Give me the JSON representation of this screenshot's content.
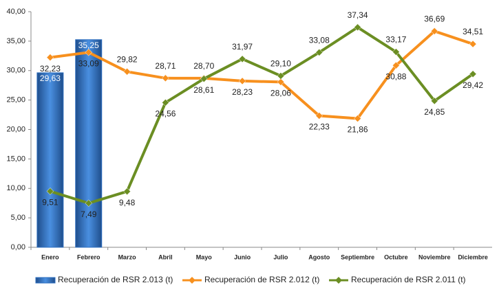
{
  "chart_data": {
    "type": "bar-line",
    "categories": [
      "Enero",
      "Febrero",
      "Marzo",
      "Abril",
      "Mayo",
      "Junio",
      "Julio",
      "Agosto",
      "Septiembre",
      "Octubre",
      "Noviembre",
      "Diciembre"
    ],
    "series": [
      {
        "name": "Recuperación de RSR 2.013 (t)",
        "type": "bar",
        "color": "#2e6fc0",
        "values": [
          29.63,
          35.25,
          null,
          null,
          null,
          null,
          null,
          null,
          null,
          null,
          null,
          null
        ],
        "value_labels": [
          "29,63",
          "35,25",
          null,
          null,
          null,
          null,
          null,
          null,
          null,
          null,
          null,
          null
        ]
      },
      {
        "name": "Recuperación de RSR 2.012 (t)",
        "type": "line",
        "color": "#f7901e",
        "values": [
          32.23,
          33.09,
          29.82,
          28.71,
          28.7,
          28.23,
          28.06,
          22.33,
          21.86,
          30.88,
          36.69,
          34.51
        ],
        "value_labels": [
          "32,23",
          "33,09",
          "29,82",
          "28,71",
          "28,70",
          "28,23",
          "28,06",
          "22,33",
          "21,86",
          "30,88",
          "36,69",
          "34,51"
        ]
      },
      {
        "name": "Recuperación de RSR 2.011 (t)",
        "type": "line",
        "color": "#6b8e23",
        "values": [
          9.51,
          7.49,
          9.48,
          24.56,
          28.61,
          31.97,
          29.1,
          33.08,
          37.34,
          33.17,
          24.85,
          29.42
        ],
        "value_labels": [
          "9,51",
          "7,49",
          "9,48",
          "24,56",
          "28,61",
          "31,97",
          "29,10",
          "33,08",
          "37,34",
          "33,17",
          "24,85",
          "29,42"
        ]
      }
    ],
    "ylim": [
      0,
      40
    ],
    "yticks": [
      {
        "value": 0,
        "label": "0,00"
      },
      {
        "value": 5,
        "label": "5,00"
      },
      {
        "value": 10,
        "label": "10,00"
      },
      {
        "value": 15,
        "label": "15,00"
      },
      {
        "value": 20,
        "label": "20,00"
      },
      {
        "value": 25,
        "label": "25,00"
      },
      {
        "value": 30,
        "label": "30,00"
      },
      {
        "value": 35,
        "label": "35,00"
      },
      {
        "value": 40,
        "label": "40,00"
      }
    ],
    "grid": false,
    "legend": "bottom"
  }
}
